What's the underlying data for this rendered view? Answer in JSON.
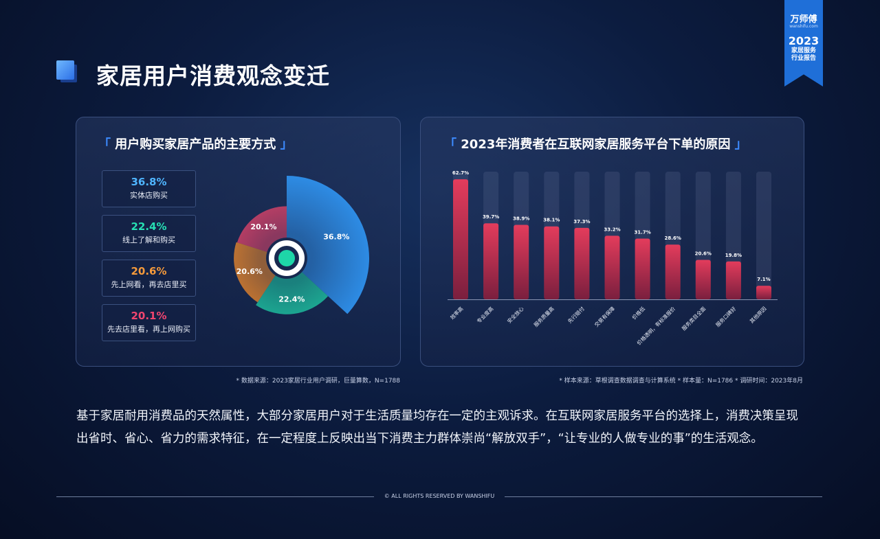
{
  "page": {
    "title": "家居用户消费观念变迁",
    "body_text": "基于家居耐用消费品的天然属性，大部分家居用户对于生活质量均存在一定的主观诉求。在互联网家居服务平台的选择上，消费决策呈现出省时、省心、省力的需求特征，在一定程度上反映出当下消费主力群体崇尚“解放双手”，“让专业的人做专业的事”的生活观念。",
    "footer": "© ALL RIGHTS RESERVED BY WANSHIFU"
  },
  "badge": {
    "brand": "万师傅",
    "site": "wanshifu.com",
    "year": "2023",
    "line1": "家居服务",
    "line2": "行业报告",
    "color": "#1f6fd8"
  },
  "left_panel": {
    "title": "用户购买家居产品的主要方式",
    "bracket_open": "「",
    "bracket_close": "」",
    "source": "* 数据来源：2023家居行业用户调研，巨量算数，N=1788"
  },
  "right_panel": {
    "title": "2023年消费者在互联网家居服务平台下单的原因",
    "bracket_open": "「",
    "bracket_close": "」",
    "source": "* 样本来源：草根调查数据调查与计算系统  * 样本量：N=1786  * 调研时间：2023年8月"
  },
  "chart_data": [
    {
      "type": "pie",
      "categories": [
        "实体店购买",
        "线上了解和购买",
        "先上网看，再去店里买",
        "先去店里看，再上网购买"
      ],
      "values": [
        36.8,
        22.4,
        20.6,
        20.1
      ],
      "value_labels": [
        "36.8%",
        "22.4%",
        "20.6%",
        "20.1%"
      ],
      "colors": [
        "#2e8ee8",
        "#1ec9a4",
        "#f18a2a",
        "#e8446a"
      ]
    },
    {
      "type": "bar",
      "categories": [
        "效率高",
        "专业度高",
        "安全放心",
        "服务质量高",
        "先行赔付",
        "交易有保障",
        "价格低",
        "价格透明，有标准报价",
        "服务类目全面",
        "服务口碑好",
        "其他原因"
      ],
      "values": [
        62.7,
        39.7,
        38.9,
        38.1,
        37.3,
        33.2,
        31.7,
        28.6,
        20.6,
        19.8,
        7.1
      ],
      "value_labels": [
        "62.7%",
        "39.7%",
        "38.9%",
        "38.1%",
        "37.3%",
        "33.2%",
        "31.7%",
        "28.6%",
        "20.6%",
        "19.8%",
        "7.1%"
      ],
      "ylim": [
        0,
        100
      ],
      "grid": false,
      "bar_color": "#e33c5c"
    }
  ]
}
